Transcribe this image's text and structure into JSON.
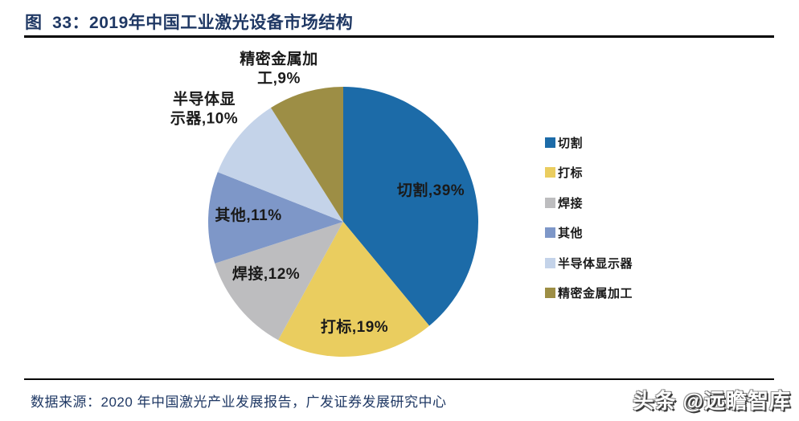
{
  "figure": {
    "title": "图  33：2019年中国工业激光设备市场结构",
    "source": "数据来源：2020 年中国激光产业发展报告，广发证券发展研究中心",
    "watermark": "头条 @远瞻智库"
  },
  "theme": {
    "title_color": "#1F3864",
    "rule_color": "#000000",
    "label_color": "#1A1A1A",
    "background": "#FFFFFF"
  },
  "chart_data": {
    "type": "pie",
    "title": "2019年中国工业激光设备市场结构",
    "unit": "%",
    "categories": [
      "切割",
      "打标",
      "焊接",
      "其他",
      "半导体显示器",
      "精密金属加工"
    ],
    "values": [
      39,
      19,
      12,
      11,
      10,
      9
    ],
    "colors": [
      "#1C6BA8",
      "#EACD5F",
      "#BDBDBF",
      "#7E97C8",
      "#C4D3E9",
      "#9D8E45"
    ],
    "slice_labels": [
      "切割,39%",
      "打标,19%",
      "焊接,12%",
      "其他,11%",
      "半导体显\n示器,10%",
      "精密金属加\n工,9%"
    ],
    "legend_items": [
      "切割",
      "打标",
      "焊接",
      "其他",
      "半导体显示器",
      "精密金属加工"
    ],
    "start_angle": "top",
    "direction": "clockwise",
    "legend_position": "right",
    "grid": false
  }
}
